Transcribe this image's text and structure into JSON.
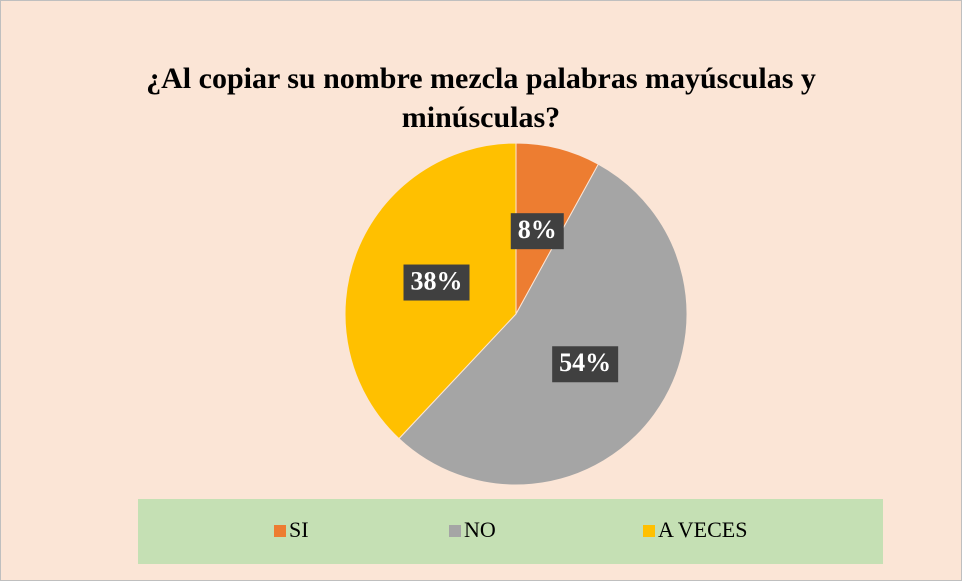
{
  "chart_data": {
    "type": "pie",
    "title": "¿Al copiar su nombre mezcla palabras mayúsculas y minúsculas?",
    "categories": [
      "SI",
      "NO",
      "A VECES"
    ],
    "values": [
      8,
      54,
      38
    ],
    "value_labels": [
      "8%",
      "54%",
      "38%"
    ],
    "colors": [
      "#ed7d31",
      "#a5a5a5",
      "#ffc000"
    ],
    "legend": "bottom"
  }
}
